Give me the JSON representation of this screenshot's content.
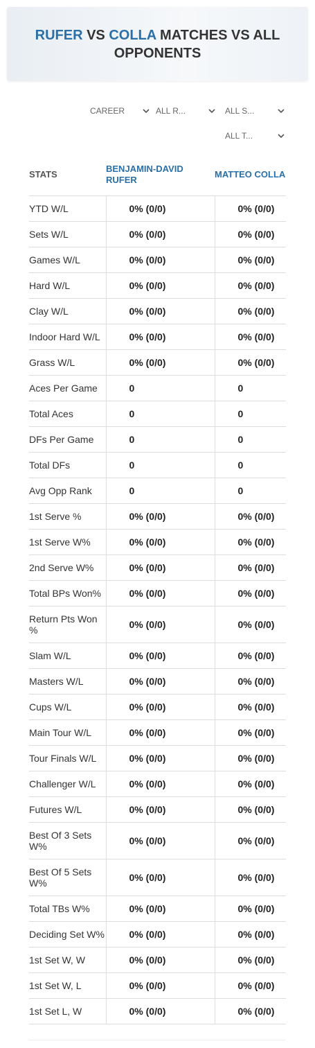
{
  "header": {
    "title": {
      "player1": "RUFER",
      "vs": "VS",
      "player2": "COLLA",
      "rest": "MATCHES VS ALL OPPONENTS"
    }
  },
  "filters": [
    "CAREER",
    "ALL R...",
    "ALL S...",
    "ALL T..."
  ],
  "table": {
    "columns": [
      "STATS",
      "BENJAMIN-DAVID RUFER",
      "MATTEO COLLA"
    ],
    "rows": [
      [
        "YTD W/L",
        "0% (0/0)",
        "0% (0/0)"
      ],
      [
        "Sets W/L",
        "0% (0/0)",
        "0% (0/0)"
      ],
      [
        "Games W/L",
        "0% (0/0)",
        "0% (0/0)"
      ],
      [
        "Hard W/L",
        "0% (0/0)",
        "0% (0/0)"
      ],
      [
        "Clay W/L",
        "0% (0/0)",
        "0% (0/0)"
      ],
      [
        "Indoor Hard W/L",
        "0% (0/0)",
        "0% (0/0)"
      ],
      [
        "Grass W/L",
        "0% (0/0)",
        "0% (0/0)"
      ],
      [
        "Aces Per Game",
        "0",
        "0"
      ],
      [
        "Total Aces",
        "0",
        "0"
      ],
      [
        "DFs Per Game",
        "0",
        "0"
      ],
      [
        "Total DFs",
        "0",
        "0"
      ],
      [
        "Avg Opp Rank",
        "0",
        "0"
      ],
      [
        "1st Serve %",
        "0% (0/0)",
        "0% (0/0)"
      ],
      [
        "1st Serve W%",
        "0% (0/0)",
        "0% (0/0)"
      ],
      [
        "2nd Serve W%",
        "0% (0/0)",
        "0% (0/0)"
      ],
      [
        "Total BPs Won%",
        "0% (0/0)",
        "0% (0/0)"
      ],
      [
        "Return Pts Won %",
        "0% (0/0)",
        "0% (0/0)"
      ],
      [
        "Slam W/L",
        "0% (0/0)",
        "0% (0/0)"
      ],
      [
        "Masters W/L",
        "0% (0/0)",
        "0% (0/0)"
      ],
      [
        "Cups W/L",
        "0% (0/0)",
        "0% (0/0)"
      ],
      [
        "Main Tour W/L",
        "0% (0/0)",
        "0% (0/0)"
      ],
      [
        "Tour Finals W/L",
        "0% (0/0)",
        "0% (0/0)"
      ],
      [
        "Challenger W/L",
        "0% (0/0)",
        "0% (0/0)"
      ],
      [
        "Futures W/L",
        "0% (0/0)",
        "0% (0/0)"
      ],
      [
        "Best Of 3 Sets W%",
        "0% (0/0)",
        "0% (0/0)"
      ],
      [
        "Best Of 5 Sets W%",
        "0% (0/0)",
        "0% (0/0)"
      ],
      [
        "Total TBs W%",
        "0% (0/0)",
        "0% (0/0)"
      ],
      [
        "Deciding Set W%",
        "0% (0/0)",
        "0% (0/0)"
      ],
      [
        "1st Set W, W",
        "0% (0/0)",
        "0% (0/0)"
      ],
      [
        "1st Set W, L",
        "0% (0/0)",
        "0% (0/0)"
      ],
      [
        "1st Set L, W",
        "0% (0/0)",
        "0% (0/0)"
      ]
    ]
  }
}
